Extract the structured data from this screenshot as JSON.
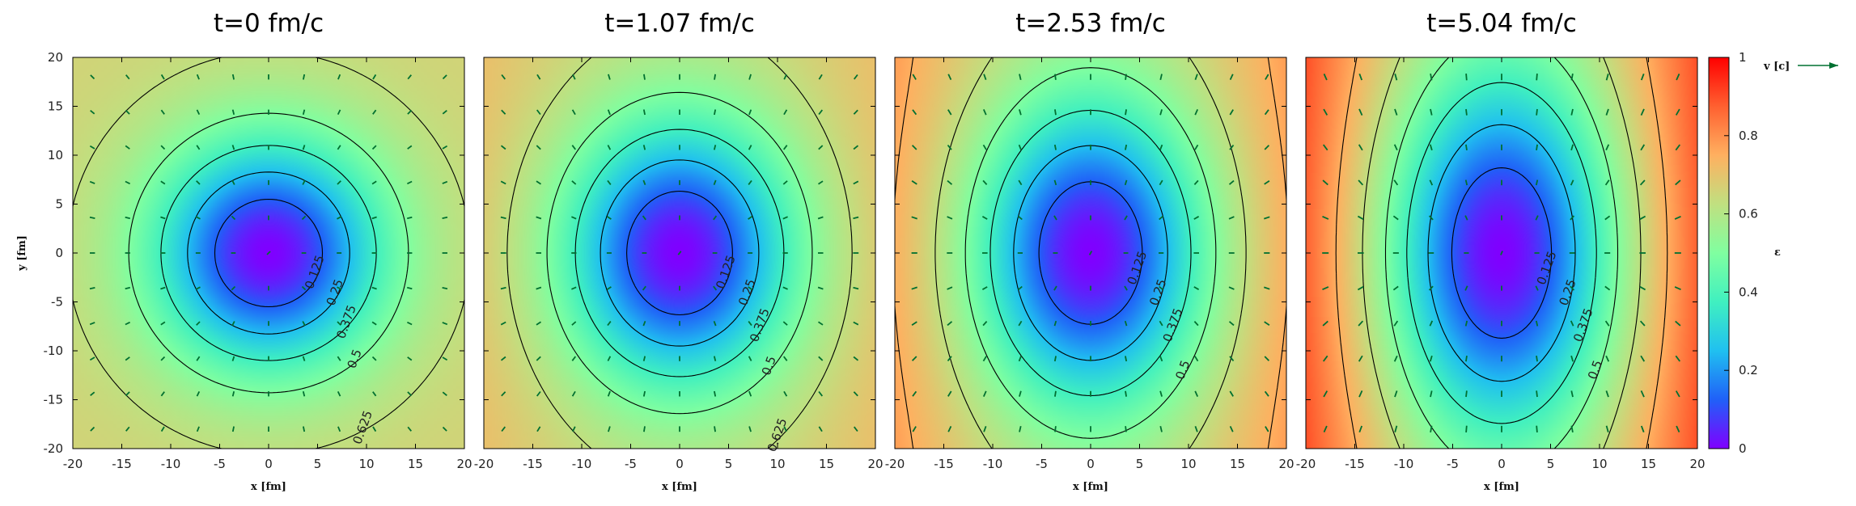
{
  "chart_data": {
    "type": "heatmap",
    "panels": [
      {
        "title": "t=0 fm/c",
        "t": 0.0
      },
      {
        "title": "t=1.07 fm/c",
        "t": 1.07
      },
      {
        "title": "t=2.53 fm/c",
        "t": 2.53
      },
      {
        "title": "t=5.04 fm/c",
        "t": 5.04
      }
    ],
    "xlabel": "x [fm]",
    "ylabel": "y [fm]",
    "xlim": [
      -20,
      20
    ],
    "ylim": [
      -20,
      20
    ],
    "xticks": [
      -20,
      -15,
      -10,
      -5,
      0,
      5,
      10,
      15,
      20
    ],
    "xtick_labels": [
      "-20",
      "-15",
      "-10",
      "-5",
      "0",
      "5",
      "10",
      "15",
      "20"
    ],
    "yticks": [
      20,
      15,
      10,
      5,
      0,
      -5,
      -10,
      -15,
      -20
    ],
    "ytick_labels": [
      "20",
      "15",
      "10",
      "5",
      "0",
      "-5",
      "-10",
      "-15",
      "-20"
    ],
    "contour_levels": [
      "0.125",
      "0.25",
      "0.375",
      "0.5",
      "0.625",
      "0.75"
    ],
    "colorbar": {
      "label": "ε",
      "range": [
        0,
        1
      ],
      "ticks": [
        "0",
        "0.2",
        "0.4",
        "0.6",
        "0.8",
        "1"
      ],
      "colormap": [
        "#8000ff",
        "#2060f8",
        "#20c0f0",
        "#40f0c0",
        "#80ffa0",
        "#c0e080",
        "#ffb060",
        "#ff6030",
        "#ff0000"
      ]
    },
    "velocity_legend": {
      "label": "v [c]",
      "color": "#007030"
    },
    "arrow_color": "#007030",
    "contour_color": "#000000",
    "grid": false
  }
}
